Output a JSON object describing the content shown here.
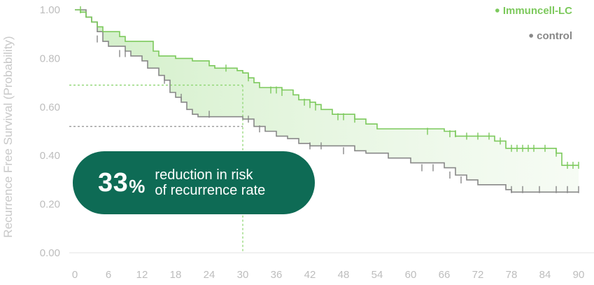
{
  "chart_data": {
    "type": "line",
    "title": "",
    "xlabel": "",
    "ylabel": "Recurrence Free Survival (Probability)",
    "xlim": [
      0,
      90
    ],
    "ylim": [
      0,
      1
    ],
    "x_ticks": [
      "0",
      "6",
      "12",
      "18",
      "24",
      "30",
      "36",
      "42",
      "48",
      "54",
      "60",
      "66",
      "72",
      "78",
      "84",
      "90"
    ],
    "y_ticks": [
      "0.00",
      "0.20",
      "0.40",
      "0.60",
      "0.80",
      "1.00"
    ],
    "legend_position": "top-right",
    "series": [
      {
        "name": "Immuncell-LC",
        "color": "#7cc95c",
        "steps": [
          [
            0,
            1.0
          ],
          [
            1,
            0.99
          ],
          [
            2,
            0.97
          ],
          [
            3,
            0.95
          ],
          [
            4,
            0.93
          ],
          [
            5,
            0.91
          ],
          [
            8,
            0.89
          ],
          [
            9,
            0.87
          ],
          [
            14,
            0.83
          ],
          [
            15,
            0.81
          ],
          [
            18,
            0.8
          ],
          [
            21,
            0.79
          ],
          [
            24,
            0.77
          ],
          [
            25,
            0.76
          ],
          [
            29,
            0.75
          ],
          [
            30,
            0.74
          ],
          [
            31,
            0.72
          ],
          [
            32,
            0.7
          ],
          [
            33,
            0.68
          ],
          [
            37,
            0.67
          ],
          [
            39,
            0.65
          ],
          [
            40,
            0.63
          ],
          [
            42,
            0.62
          ],
          [
            43,
            0.61
          ],
          [
            44,
            0.59
          ],
          [
            46,
            0.57
          ],
          [
            50,
            0.55
          ],
          [
            52,
            0.53
          ],
          [
            54,
            0.51
          ],
          [
            66,
            0.5
          ],
          [
            68,
            0.48
          ],
          [
            75,
            0.46
          ],
          [
            77,
            0.43
          ],
          [
            86,
            0.41
          ],
          [
            87,
            0.36
          ]
        ],
        "end_x": 90,
        "censored": [
          [
            1,
            1.0
          ],
          [
            27,
            0.76
          ],
          [
            31,
            0.72
          ],
          [
            35,
            0.67
          ],
          [
            36,
            0.67
          ],
          [
            37,
            0.66
          ],
          [
            41,
            0.62
          ],
          [
            42,
            0.61
          ],
          [
            43,
            0.6
          ],
          [
            47,
            0.56
          ],
          [
            48,
            0.56
          ],
          [
            50,
            0.55
          ],
          [
            63,
            0.5
          ],
          [
            67,
            0.49
          ],
          [
            68,
            0.49
          ],
          [
            70,
            0.48
          ],
          [
            72,
            0.48
          ],
          [
            74,
            0.48
          ],
          [
            76,
            0.46
          ],
          [
            78,
            0.43
          ],
          [
            79,
            0.43
          ],
          [
            80,
            0.43
          ],
          [
            81,
            0.43
          ],
          [
            82,
            0.43
          ],
          [
            84,
            0.43
          ],
          [
            86,
            0.41
          ],
          [
            88,
            0.36
          ],
          [
            89,
            0.36
          ],
          [
            90,
            0.36
          ]
        ]
      },
      {
        "name": "control",
        "color": "#888888",
        "steps": [
          [
            0,
            1.0
          ],
          [
            2,
            0.97
          ],
          [
            3,
            0.95
          ],
          [
            4,
            0.91
          ],
          [
            5,
            0.87
          ],
          [
            6,
            0.85
          ],
          [
            9,
            0.83
          ],
          [
            10,
            0.81
          ],
          [
            12,
            0.79
          ],
          [
            13,
            0.76
          ],
          [
            15,
            0.73
          ],
          [
            16,
            0.71
          ],
          [
            17,
            0.66
          ],
          [
            18,
            0.64
          ],
          [
            19,
            0.62
          ],
          [
            20,
            0.59
          ],
          [
            21,
            0.57
          ],
          [
            22,
            0.56
          ],
          [
            30,
            0.55
          ],
          [
            32,
            0.52
          ],
          [
            34,
            0.5
          ],
          [
            36,
            0.48
          ],
          [
            38,
            0.47
          ],
          [
            40,
            0.45
          ],
          [
            42,
            0.44
          ],
          [
            50,
            0.42
          ],
          [
            52,
            0.41
          ],
          [
            56,
            0.39
          ],
          [
            60,
            0.37
          ],
          [
            66,
            0.35
          ],
          [
            68,
            0.32
          ],
          [
            70,
            0.3
          ],
          [
            72,
            0.28
          ],
          [
            77,
            0.26
          ],
          [
            78,
            0.25
          ]
        ],
        "end_x": 90,
        "censored": [
          [
            4,
            0.88
          ],
          [
            8,
            0.82
          ],
          [
            9,
            0.82
          ],
          [
            16,
            0.71
          ],
          [
            19,
            0.64
          ],
          [
            24,
            0.57
          ],
          [
            31,
            0.55
          ],
          [
            33,
            0.51
          ],
          [
            42,
            0.44
          ],
          [
            44,
            0.44
          ],
          [
            48,
            0.42
          ],
          [
            62,
            0.35
          ],
          [
            64,
            0.35
          ],
          [
            67,
            0.32
          ],
          [
            69,
            0.3
          ],
          [
            78,
            0.26
          ],
          [
            80,
            0.26
          ],
          [
            83,
            0.26
          ],
          [
            86,
            0.26
          ],
          [
            88,
            0.26
          ],
          [
            90,
            0.26
          ]
        ]
      }
    ],
    "guides": {
      "x": 30,
      "y_immuncell": 0.69,
      "y_control": 0.52
    }
  },
  "callout": {
    "percent": "33",
    "percent_sign": "%",
    "line1": "reduction in risk",
    "line2": "of recurrence rate"
  }
}
